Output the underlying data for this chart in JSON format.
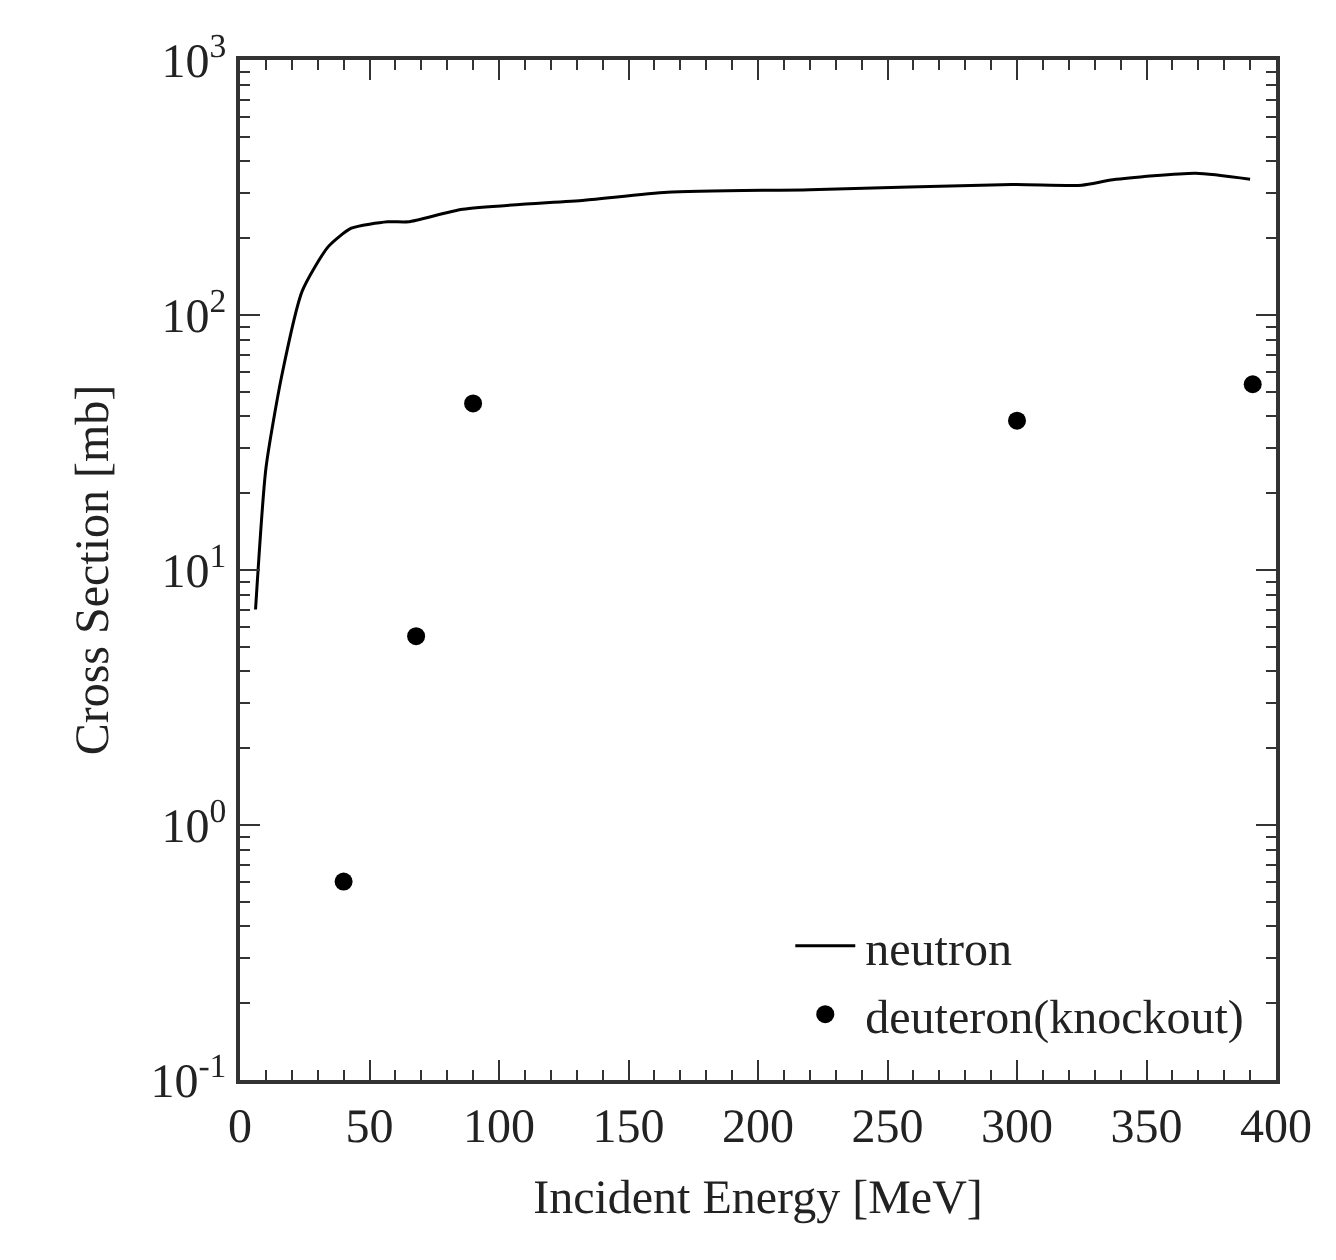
{
  "chart_data": {
    "type": "line",
    "xlabel": "Incident Energy [MeV]",
    "ylabel": "Cross Section [mb]",
    "xlim": [
      0,
      400
    ],
    "xticks": [
      0,
      50,
      100,
      150,
      200,
      250,
      300,
      350,
      400
    ],
    "ylim": [
      0.1,
      1000
    ],
    "yticks": [
      {
        "value": 0.1,
        "label": "10$^{-1}$"
      },
      {
        "value": 1,
        "label": "10$^{0}$"
      },
      {
        "value": 10,
        "label": "10$^{1}$"
      },
      {
        "value": 100,
        "label": "10$^{2}$"
      },
      {
        "value": 1000,
        "label": "10$^{3}$"
      }
    ],
    "log": "y",
    "grid": false,
    "legend": "bottom right",
    "series": [
      {
        "name": "neutron",
        "color": "#000000",
        "line_style": "solid",
        "marker": "none",
        "x": [
          6,
          10,
          16,
          24,
          34,
          43,
          57,
          65,
          86,
          133,
          165,
          220,
          298,
          325,
          337,
          369,
          390
        ],
        "values": [
          7,
          25,
          57,
          124,
          185,
          219,
          232,
          232,
          260,
          282,
          303,
          310,
          325,
          323,
          339,
          360,
          341
        ]
      },
      {
        "name": "deuteron(knockout)",
        "type": "scatter",
        "color": "#000000",
        "marker": "circle",
        "x": [
          40,
          68,
          90,
          300,
          391
        ],
        "values": [
          0.6,
          5.5,
          45,
          38.5,
          53.5
        ]
      }
    ]
  }
}
